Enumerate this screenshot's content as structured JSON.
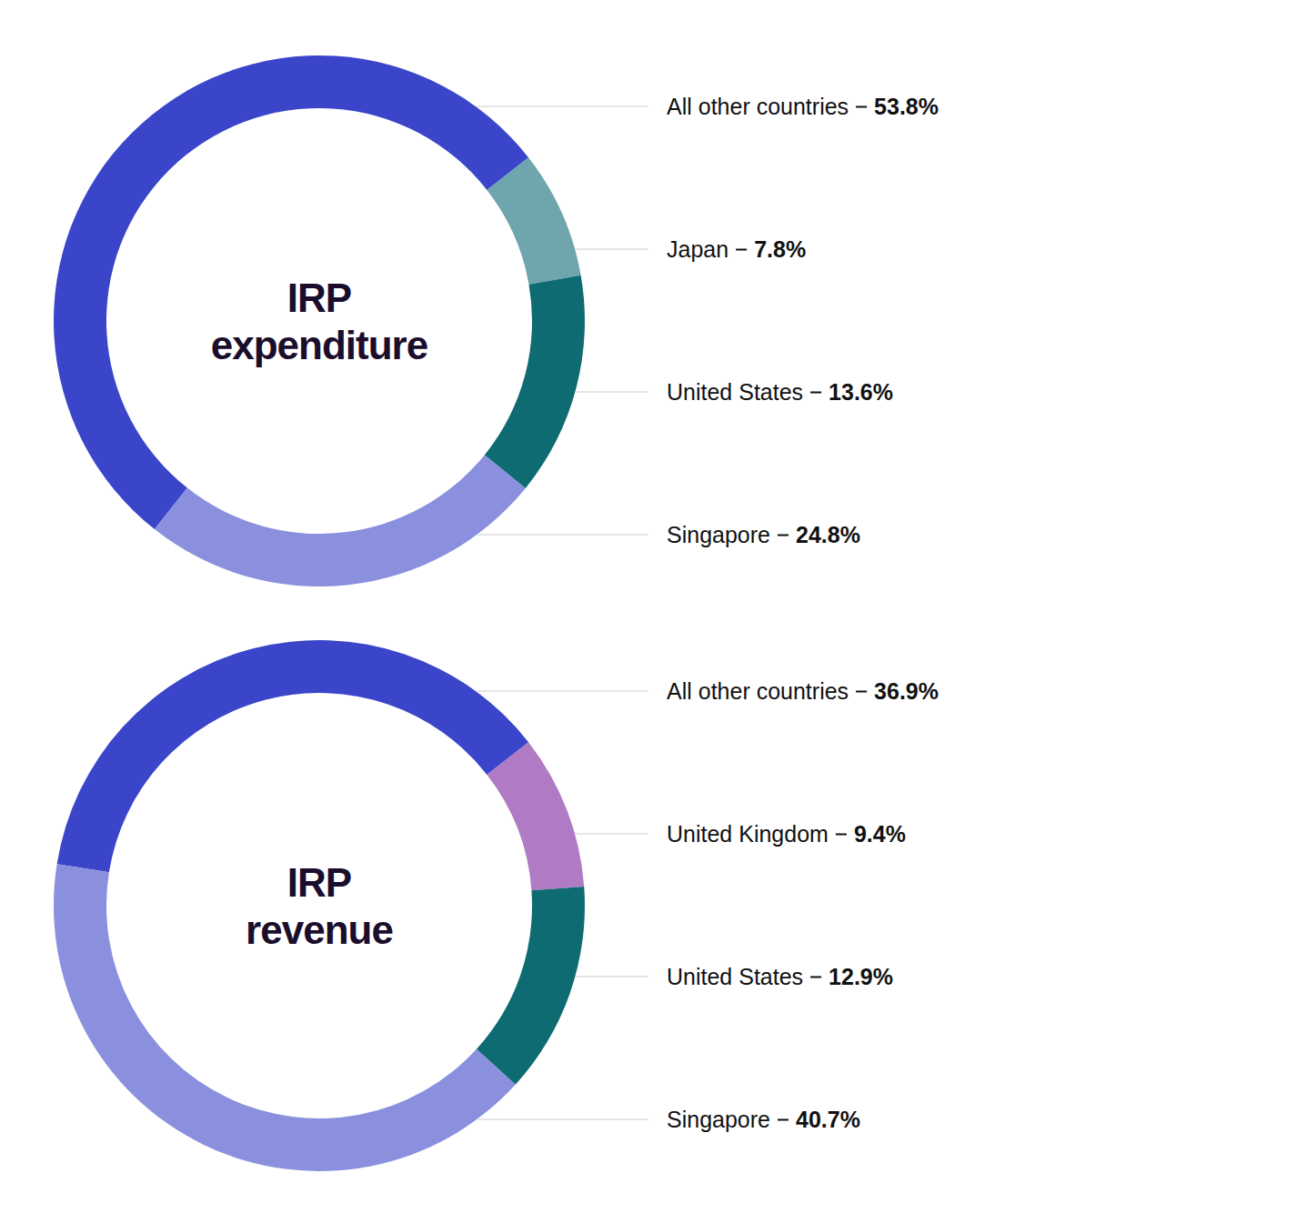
{
  "chart_data": [
    {
      "type": "donut",
      "title": "IRP expenditure",
      "categories": [
        "All other countries",
        "Japan",
        "United States",
        "Singapore"
      ],
      "values": [
        53.8,
        7.8,
        13.6,
        24.8
      ],
      "value_labels": [
        "53.8%",
        "7.8%",
        "13.6%",
        "24.8%"
      ],
      "colors": [
        "#3a45c9",
        "#6fa5ad",
        "#0e6b72",
        "#8a90de"
      ],
      "data_labels": true
    },
    {
      "type": "donut",
      "title": "IRP revenue",
      "categories": [
        "All other countries",
        "United Kingdom",
        "United States",
        "Singapore"
      ],
      "values": [
        36.9,
        9.4,
        12.9,
        40.7
      ],
      "value_labels": [
        "36.9%",
        "9.4%",
        "12.9%",
        "40.7%"
      ],
      "colors": [
        "#3a45c9",
        "#b07bc4",
        "#0e6b72",
        "#8a90de"
      ],
      "data_labels": true
    }
  ]
}
